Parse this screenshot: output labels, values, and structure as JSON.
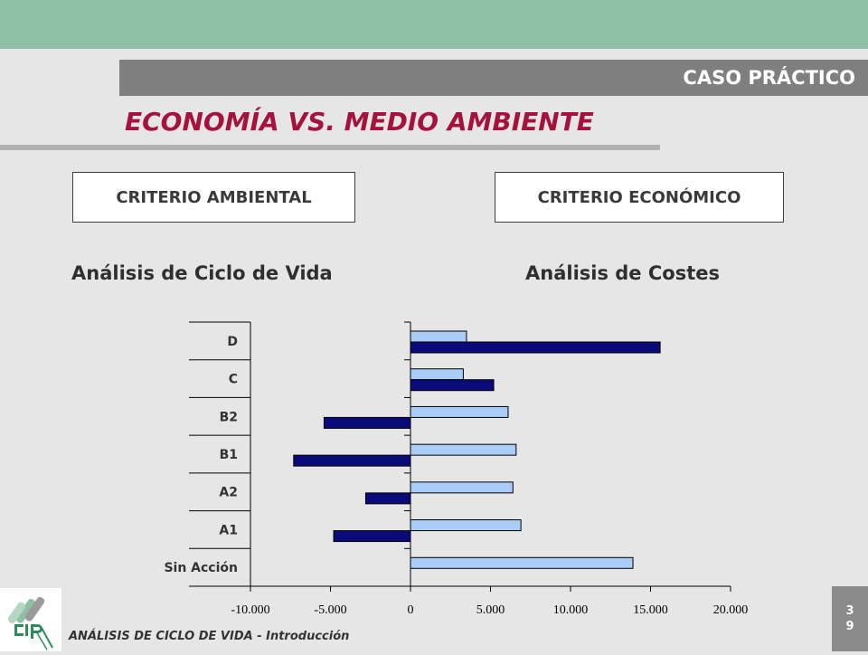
{
  "header": {
    "section_label": "CASO PRÁCTICO",
    "title": "ECONOMÍA VS. MEDIO AMBIENTE"
  },
  "criteria": {
    "environmental": "CRITERIO AMBIENTAL",
    "economic": "CRITERIO ECONÓMICO"
  },
  "subtitles": {
    "lca": "Análisis de Ciclo de Vida",
    "cost": "Análisis de Costes"
  },
  "footer": {
    "text": "ANÁLISIS DE CICLO DE VIDA - Introducción",
    "page_digits": [
      "3",
      "9"
    ]
  },
  "colors": {
    "top_band": "#8fc0a5",
    "title": "#a6123f",
    "light_bar": "#a9cdf7",
    "dark_bar": "#0a0a7a"
  },
  "chart_data": {
    "type": "bar",
    "orientation": "horizontal",
    "categories": [
      "D",
      "C",
      "B2",
      "B1",
      "A2",
      "A1",
      "Sin Acción"
    ],
    "series": [
      {
        "color": "#a9cdf7",
        "values": [
          3500,
          3300,
          6100,
          6600,
          6400,
          6900,
          13900
        ]
      },
      {
        "color": "#0a0a7a",
        "values": [
          15600,
          5200,
          -5400,
          -7300,
          -2800,
          -4800,
          0
        ]
      }
    ],
    "xlim": [
      -10000,
      20000
    ],
    "xticks": [
      {
        "v": -10000,
        "label": "-10.000"
      },
      {
        "v": -5000,
        "label": "-5.000"
      },
      {
        "v": 0,
        "label": "0"
      },
      {
        "v": 5000,
        "label": "5.000"
      },
      {
        "v": 10000,
        "label": "10.000"
      },
      {
        "v": 15000,
        "label": "15.000"
      },
      {
        "v": 20000,
        "label": "20.000"
      }
    ],
    "grid": false,
    "legend": "none"
  }
}
